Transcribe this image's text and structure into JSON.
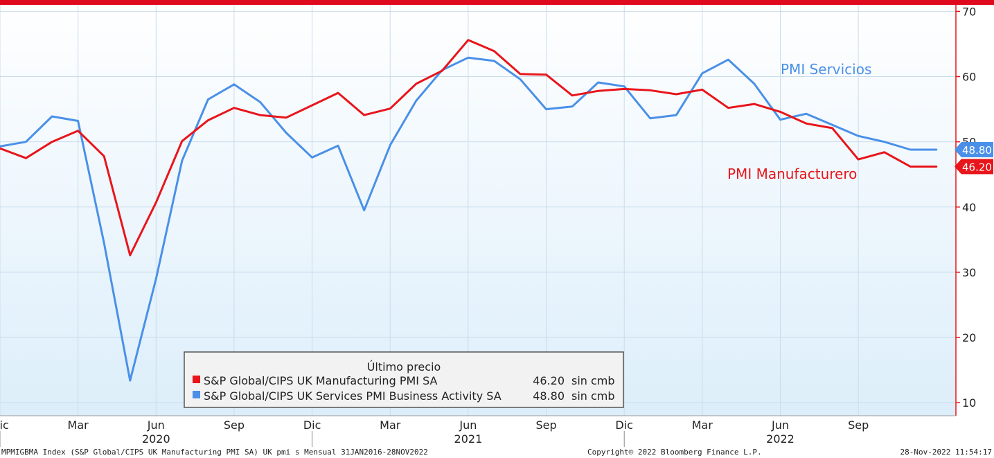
{
  "chart_data": {
    "type": "line",
    "ylim": [
      8,
      71
    ],
    "y_ticks": [
      10,
      20,
      30,
      40,
      50,
      60,
      70
    ],
    "x_month_labels": [
      {
        "i": 0,
        "label": "Dic"
      },
      {
        "i": 3,
        "label": "Mar"
      },
      {
        "i": 6,
        "label": "Jun"
      },
      {
        "i": 9,
        "label": "Sep"
      },
      {
        "i": 12,
        "label": "Dic"
      },
      {
        "i": 15,
        "label": "Mar"
      },
      {
        "i": 18,
        "label": "Jun"
      },
      {
        "i": 21,
        "label": "Sep"
      },
      {
        "i": 24,
        "label": "Dic"
      },
      {
        "i": 27,
        "label": "Mar"
      },
      {
        "i": 30,
        "label": "Jun"
      },
      {
        "i": 33,
        "label": "Sep"
      }
    ],
    "x_year_labels": [
      {
        "i": 6,
        "label": "2020"
      },
      {
        "i": 18,
        "label": "2021"
      },
      {
        "i": 30,
        "label": "2022"
      }
    ],
    "series": [
      {
        "name": "S&P Global/CIPS UK Manufacturing PMI SA",
        "color": "#e8151b",
        "values": [
          49.0,
          47.5,
          50.0,
          51.7,
          47.8,
          32.6,
          40.7,
          50.1,
          53.3,
          55.2,
          54.1,
          53.7,
          55.6,
          57.5,
          54.1,
          55.1,
          58.9,
          60.9,
          65.6,
          63.9,
          60.4,
          60.3,
          57.1,
          57.8,
          58.1,
          57.9,
          57.3,
          58.0,
          55.2,
          55.8,
          54.6,
          52.8,
          52.1,
          47.3,
          48.4,
          46.2,
          46.2
        ]
      },
      {
        "name": "S&P Global/CIPS UK Services PMI Business Activity SA",
        "color": "#4a90e8",
        "values": [
          49.3,
          50.0,
          53.9,
          53.2,
          34.5,
          13.4,
          29.0,
          47.1,
          56.5,
          58.8,
          56.1,
          51.4,
          47.6,
          49.4,
          39.5,
          49.5,
          56.3,
          61.0,
          62.9,
          62.4,
          59.6,
          55.0,
          55.4,
          59.1,
          58.5,
          53.6,
          54.1,
          60.5,
          62.6,
          58.9,
          53.4,
          54.3,
          52.6,
          50.9,
          50.0,
          48.8,
          48.8
        ]
      }
    ],
    "annotations": {
      "services_label": "PMI Servicios",
      "manufacturing_label": "PMI Manufacturero"
    },
    "last_values": {
      "services": "48.80",
      "manufacturing": "46.20"
    },
    "legend": {
      "title": "Último precio",
      "rows": [
        {
          "name": "S&P Global/CIPS UK Manufacturing PMI SA",
          "value": "46.20",
          "change": "sin cmb",
          "color": "#e8151b"
        },
        {
          "name": "S&P Global/CIPS UK Services PMI Business Activity SA",
          "value": "48.80",
          "change": "sin cmb",
          "color": "#4a90e8"
        }
      ]
    }
  },
  "footer": {
    "left": "MPMIGBMA Index (S&P Global/CIPS UK Manufacturing PMI SA) UK pmi s  Mensual 31JAN2016-28NOV2022",
    "center": "Copyright© 2022 Bloomberg Finance L.P.",
    "right": "28-Nov-2022 11:54:17"
  },
  "colors": {
    "top_bar": "#e00a1e",
    "background_top": "#ffffff",
    "background_bottom": "#dceefa",
    "grid": "#c9dcec"
  }
}
